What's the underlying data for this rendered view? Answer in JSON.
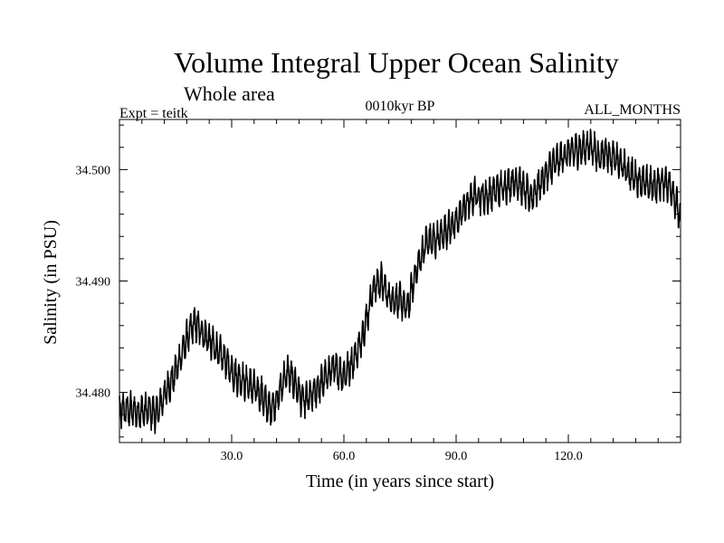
{
  "chart_data": {
    "type": "line",
    "title": "Volume Integral Upper Ocean Salinity",
    "subtitle": "Whole area",
    "annotations": {
      "left": "Expt = teitk",
      "center": "0010kyr BP",
      "right": "ALL_MONTHS"
    },
    "xlabel": "Time (in years since start)",
    "ylabel": "Salinity (in PSU)",
    "xlim": [
      0,
      150
    ],
    "ylim": [
      34.4755,
      34.5045
    ],
    "xticks": [
      30,
      60,
      90,
      120
    ],
    "xtick_labels": [
      "30.0",
      "60.0",
      "90.0",
      "120.0"
    ],
    "yticks": [
      34.48,
      34.49,
      34.5
    ],
    "ytick_labels": [
      "34.480",
      "34.490",
      "34.500"
    ],
    "grid": false,
    "series": [
      {
        "name": "salinity",
        "color": "#000000",
        "anchors_x": [
          0,
          2,
          5,
          8,
          10,
          12,
          15,
          18,
          20,
          22,
          25,
          28,
          31,
          35,
          38,
          40,
          42,
          44,
          45,
          47,
          49,
          51,
          54,
          57,
          60,
          62,
          64,
          66,
          68,
          70,
          72,
          75,
          77,
          79,
          82,
          85,
          88,
          90,
          92,
          95,
          98,
          100,
          103,
          106,
          110,
          113,
          116,
          120,
          123,
          126,
          128,
          130,
          133,
          136,
          140,
          143,
          146,
          148,
          150
        ],
        "anchors_y": [
          34.4783,
          34.4785,
          34.4782,
          34.4784,
          34.478,
          34.4798,
          34.4818,
          34.4848,
          34.4862,
          34.4855,
          34.4842,
          34.483,
          34.4815,
          34.4806,
          34.4798,
          34.4785,
          34.4793,
          34.4812,
          34.4818,
          34.4808,
          34.4792,
          34.4795,
          34.4808,
          34.4822,
          34.4815,
          34.4825,
          34.484,
          34.4865,
          34.4895,
          34.49,
          34.4885,
          34.4882,
          34.4875,
          34.4905,
          34.4935,
          34.4937,
          34.4948,
          34.4952,
          34.4965,
          34.4978,
          34.4975,
          34.498,
          34.4985,
          34.499,
          34.4975,
          34.499,
          34.5005,
          34.5015,
          34.5018,
          34.5022,
          34.5012,
          34.5015,
          34.5008,
          34.4998,
          34.4988,
          34.4985,
          34.499,
          34.498,
          34.4955
        ],
        "samples_per_year": 12,
        "seasonal_amplitude": 0.0012,
        "noise_amplitude": 0.0006
      }
    ]
  }
}
